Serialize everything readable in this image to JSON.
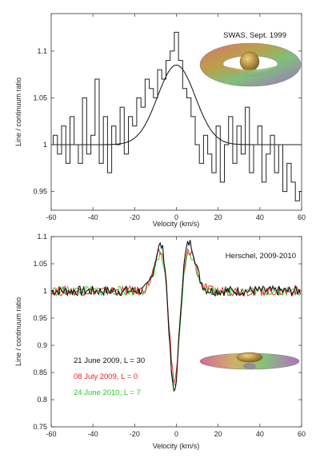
{
  "chart_data": [
    {
      "type": "line",
      "title": "SWAS, Sept. 1999",
      "xlabel": "Velocity (km/s)",
      "ylabel": "Line / continuum ratio",
      "xlim": [
        -60,
        60
      ],
      "ylim": [
        0.93,
        1.14
      ],
      "xticks": [
        -60,
        -40,
        -20,
        0,
        20,
        40,
        60
      ],
      "yticks": [
        0.95,
        1,
        1.05,
        1.1
      ],
      "ytick_labels": [
        "0.95",
        "1",
        "1.05",
        "1.1"
      ],
      "inset": "torus with central sphere",
      "series": [
        {
          "color": "#222222",
          "style": "steps",
          "x": [
            -60,
            -58,
            -56,
            -54,
            -52,
            -50,
            -48,
            -46,
            -44,
            -42,
            -40,
            -38,
            -36,
            -34,
            -32,
            -30,
            -28,
            -26,
            -24,
            -22,
            -20,
            -18,
            -16,
            -14,
            -12,
            -10,
            -8,
            -6,
            -4,
            -2,
            0,
            2,
            4,
            6,
            8,
            10,
            12,
            14,
            16,
            18,
            20,
            22,
            24,
            26,
            28,
            30,
            32,
            34,
            36,
            38,
            40,
            42,
            44,
            46,
            48,
            50,
            52,
            54,
            56,
            58,
            60
          ],
          "y": [
            1.0,
            1.01,
            0.99,
            1.02,
            0.98,
            1.03,
            1.0,
            0.98,
            1.05,
            0.99,
            1.01,
            1.07,
            0.98,
            1.03,
            0.97,
            1.02,
            1.0,
            1.04,
            0.99,
            1.03,
            1.02,
            1.05,
            1.04,
            1.07,
            1.06,
            1.05,
            1.08,
            1.07,
            1.09,
            1.1,
            1.12,
            1.09,
            1.06,
            1.05,
            1.03,
            1.0,
            0.98,
            1.01,
            0.99,
            0.97,
            1.02,
            0.96,
            1.0,
            1.03,
            0.98,
            1.02,
            0.99,
            1.04,
            0.97,
            1.0,
            1.02,
            0.96,
            0.99,
            1.01,
            0.97,
            1.0,
            0.95,
            0.98,
            0.96,
            0.94,
            0.95
          ]
        },
        {
          "color": "#222222",
          "style": "smooth",
          "gauss": {
            "base": 1.0,
            "amp": 0.085,
            "center": 0,
            "sigma": 9,
            "slope": 0.0
          }
        }
      ]
    },
    {
      "type": "line",
      "title": "Herschel, 2009-2010",
      "xlabel": "Velocity (km/s)",
      "ylabel": "Line / continuum ratio",
      "xlim": [
        -60,
        60
      ],
      "ylim": [
        0.75,
        1.1
      ],
      "xticks": [
        -60,
        -40,
        -20,
        0,
        20,
        40,
        60
      ],
      "yticks": [
        0.75,
        0.8,
        0.85,
        0.9,
        0.95,
        1,
        1.05,
        1.1
      ],
      "ytick_labels": [
        "0.75",
        "0.8",
        "0.85",
        "0.9",
        "0.95",
        "1",
        "1.05",
        "1.1"
      ],
      "inset": "flattened disk with central sphere",
      "series": [
        {
          "name": "21 June 2009, L = 30",
          "color": "#111111",
          "profile": {
            "abs_depth": 0.21,
            "abs_center": -1.2,
            "abs_sigma": 2.3,
            "em_amp": 0.09,
            "em_left": -7,
            "em_right": 6,
            "em_sigma": 3.2
          }
        },
        {
          "name": "08 July 2009, L = 0",
          "color": "#ee2020",
          "profile": {
            "abs_depth": 0.19,
            "abs_center": -1.0,
            "abs_sigma": 2.3,
            "em_amp": 0.075,
            "em_left": -7,
            "em_right": 6,
            "em_sigma": 3.4
          }
        },
        {
          "name": "24 June 2010, L = 7",
          "color": "#22cc22",
          "profile": {
            "abs_depth": 0.2,
            "abs_center": -1.1,
            "abs_sigma": 2.4,
            "em_amp": 0.07,
            "em_left": -7,
            "em_right": 6,
            "em_sigma": 3.4
          }
        }
      ]
    }
  ]
}
